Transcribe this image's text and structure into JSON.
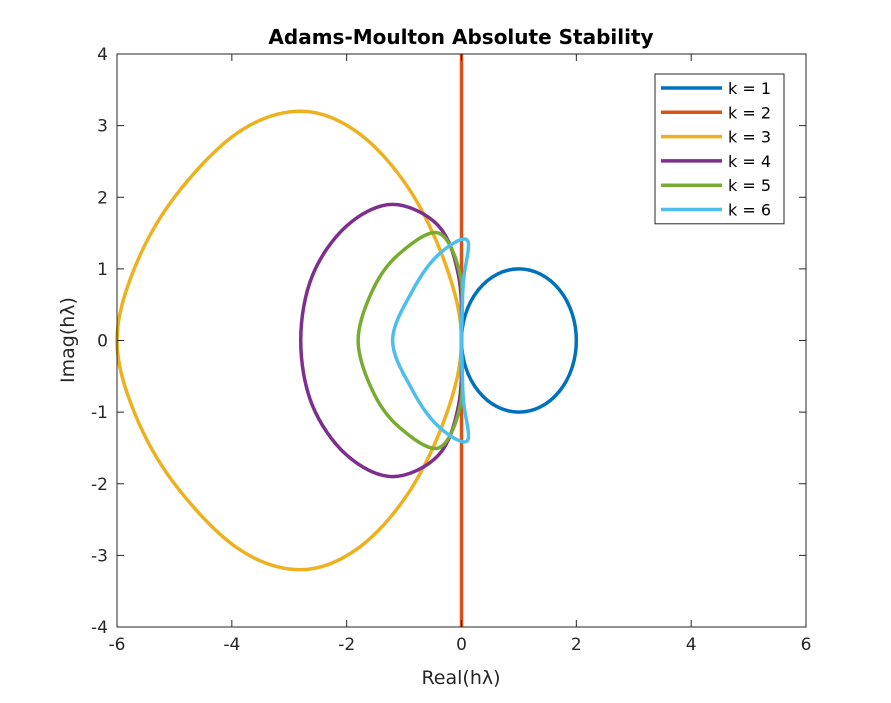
{
  "chart_data": {
    "type": "line",
    "title": "Adams-Moulton Absolute Stability",
    "xlabel": "Real(hλ)",
    "ylabel": "Imag(hλ)",
    "xlim": [
      -6,
      6
    ],
    "ylim": [
      -4,
      4
    ],
    "xticks": [
      "-6",
      "-4",
      "-2",
      "0",
      "2",
      "4",
      "6"
    ],
    "yticks": [
      "-4",
      "-3",
      "-2",
      "-1",
      "0",
      "1",
      "2",
      "3",
      "4"
    ],
    "grid": false,
    "legend_position": "top-right",
    "series": [
      {
        "name": "k = 1",
        "color": "#0072BD",
        "curve": "circle",
        "center": [
          1,
          0
        ],
        "radius": 1
      },
      {
        "name": "k = 2",
        "color": "#D95319",
        "curve": "vertical-line",
        "x": 0,
        "y_range": [
          -4,
          4
        ]
      },
      {
        "name": "k = 3",
        "color": "#EDB120",
        "curve": "closed",
        "points": [
          [
            0,
            0
          ],
          [
            -0.25,
            1.0
          ],
          [
            -0.9,
            2.1
          ],
          [
            -1.8,
            2.9
          ],
          [
            -2.8,
            3.2
          ],
          [
            -3.9,
            2.9
          ],
          [
            -5.0,
            2.0
          ],
          [
            -5.7,
            1.0
          ],
          [
            -6,
            0
          ],
          [
            -5.7,
            -1.0
          ],
          [
            -5.0,
            -2.0
          ],
          [
            -3.9,
            -2.9
          ],
          [
            -2.8,
            -3.2
          ],
          [
            -1.8,
            -2.9
          ],
          [
            -0.9,
            -2.1
          ],
          [
            -0.25,
            -1.0
          ]
        ]
      },
      {
        "name": "k = 4",
        "color": "#7E2F8E",
        "curve": "closed",
        "points": [
          [
            0,
            0
          ],
          [
            -0.05,
            0.9
          ],
          [
            -0.4,
            1.6
          ],
          [
            -1.2,
            1.9
          ],
          [
            -2.0,
            1.6
          ],
          [
            -2.6,
            0.9
          ],
          [
            -2.8,
            0
          ],
          [
            -2.6,
            -0.9
          ],
          [
            -2.0,
            -1.6
          ],
          [
            -1.2,
            -1.9
          ],
          [
            -0.4,
            -1.6
          ],
          [
            -0.05,
            -0.9
          ]
        ]
      },
      {
        "name": "k = 5",
        "color": "#77AC30",
        "curve": "closed",
        "points": [
          [
            0,
            0
          ],
          [
            -0.02,
            0.9
          ],
          [
            -0.4,
            1.5
          ],
          [
            -1.1,
            1.2
          ],
          [
            -1.55,
            0.7
          ],
          [
            -1.8,
            0
          ],
          [
            -1.55,
            -0.7
          ],
          [
            -1.1,
            -1.2
          ],
          [
            -0.4,
            -1.5
          ],
          [
            -0.02,
            -0.9
          ]
        ]
      },
      {
        "name": "k = 6",
        "color": "#4DBEEE",
        "curve": "closed",
        "points": [
          [
            0,
            0
          ],
          [
            0.03,
            0.8
          ],
          [
            0.1,
            1.4
          ],
          [
            -0.4,
            1.2
          ],
          [
            -0.85,
            0.7
          ],
          [
            -1.2,
            0
          ],
          [
            -0.85,
            -0.7
          ],
          [
            -0.4,
            -1.2
          ],
          [
            0.1,
            -1.4
          ],
          [
            0.03,
            -0.8
          ]
        ]
      }
    ]
  }
}
